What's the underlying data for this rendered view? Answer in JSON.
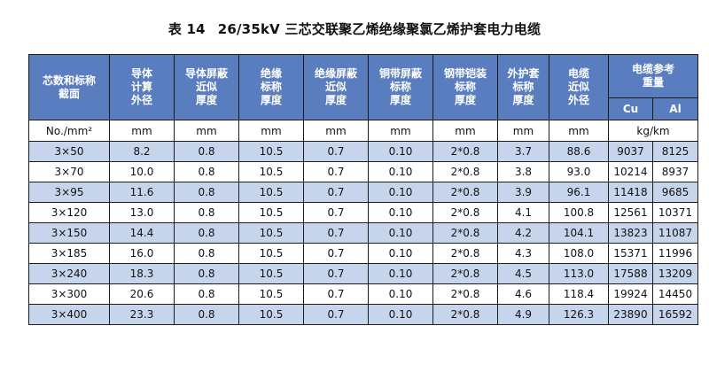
{
  "caption": {
    "number": "表 14",
    "title": "26/35kV 三芯交联聚乙烯绝缘聚氯乙烯护套电力电缆"
  },
  "headers": [
    [
      "芯数和标称",
      "截面"
    ],
    [
      "导体",
      "计算",
      "外径"
    ],
    [
      "导体屏蔽",
      "近似",
      "厚度"
    ],
    [
      "绝缘",
      "标称",
      "厚度"
    ],
    [
      "绝缘屏蔽",
      "近似",
      "厚度"
    ],
    [
      "铜带屏蔽",
      "标称",
      "厚度"
    ],
    [
      "钢带铠装",
      "标称",
      "厚度"
    ],
    [
      "外护套",
      "标称",
      "厚度"
    ],
    [
      "电缆",
      "近似",
      "外径"
    ]
  ],
  "weight_header": [
    "电缆参考",
    "重量"
  ],
  "weight_sub": [
    "Cu",
    "Al"
  ],
  "units": [
    "No./mm²",
    "mm",
    "mm",
    "mm",
    "mm",
    "mm",
    "mm",
    "mm",
    "mm",
    "kg/km"
  ],
  "rows": [
    [
      "3×50",
      "8.2",
      "0.8",
      "10.5",
      "0.7",
      "0.10",
      "2*0.8",
      "3.7",
      "88.6",
      "9037",
      "8125"
    ],
    [
      "3×70",
      "10.0",
      "0.8",
      "10.5",
      "0.7",
      "0.10",
      "2*0.8",
      "3.8",
      "93.0",
      "10214",
      "8937"
    ],
    [
      "3×95",
      "11.6",
      "0.8",
      "10.5",
      "0.7",
      "0.10",
      "2*0.8",
      "3.9",
      "96.1",
      "11418",
      "9685"
    ],
    [
      "3×120",
      "13.0",
      "0.8",
      "10.5",
      "0.7",
      "0.10",
      "2*0.8",
      "4.1",
      "100.8",
      "12561",
      "10371"
    ],
    [
      "3×150",
      "14.4",
      "0.8",
      "10.5",
      "0.7",
      "0.10",
      "2*0.8",
      "4.2",
      "104.1",
      "13823",
      "11087"
    ],
    [
      "3×185",
      "16.0",
      "0.8",
      "10.5",
      "0.7",
      "0.10",
      "2*0.8",
      "4.3",
      "108.0",
      "15371",
      "11996"
    ],
    [
      "3×240",
      "18.3",
      "0.8",
      "10.5",
      "0.7",
      "0.10",
      "2*0.8",
      "4.5",
      "113.0",
      "17588",
      "13209"
    ],
    [
      "3×300",
      "20.6",
      "0.8",
      "10.5",
      "0.7",
      "0.10",
      "2*0.8",
      "4.6",
      "118.4",
      "19924",
      "14450"
    ],
    [
      "3×400",
      "23.3",
      "0.8",
      "10.5",
      "0.7",
      "0.10",
      "2*0.8",
      "4.9",
      "126.3",
      "23890",
      "16592"
    ]
  ],
  "colors": {
    "header_bg": "#5a7dc0",
    "header_text": "#ffffff",
    "stripe": "#c7d5ec",
    "border": "#1b1b1b"
  }
}
